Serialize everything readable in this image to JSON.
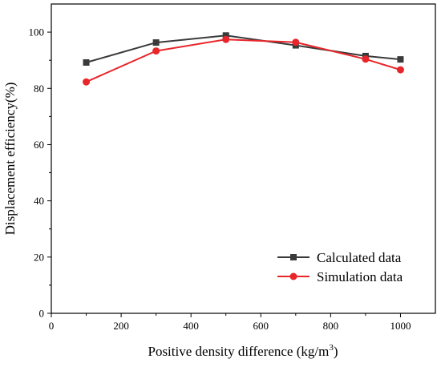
{
  "chart_data": {
    "type": "line",
    "xlabel": "Positive density difference (kg/m",
    "xlabel_sup": "3",
    "xlabel_end": ")",
    "ylabel": "Displacement efficiency(%)",
    "xlim": [
      0,
      1100
    ],
    "ylim": [
      0,
      110
    ],
    "xticks": [
      0,
      200,
      400,
      600,
      800,
      1000
    ],
    "yticks": [
      0,
      20,
      40,
      60,
      80,
      100
    ],
    "xtick_labels": [
      "0",
      "200",
      "400",
      "600",
      "800",
      "1000"
    ],
    "ytick_labels": [
      "0",
      "20",
      "40",
      "60",
      "80",
      "100"
    ],
    "legend_position": "bottom-right",
    "grid": false,
    "series": [
      {
        "name": "Calculated data",
        "color": "#3a3a3a",
        "marker": "square",
        "x": [
          100,
          300,
          500,
          700,
          900,
          1000
        ],
        "y": [
          89.2,
          96.3,
          98.8,
          95.3,
          91.5,
          90.3
        ]
      },
      {
        "name": "Simulation data",
        "color": "#e8262a",
        "marker": "circle",
        "x": [
          100,
          300,
          500,
          700,
          900,
          1000
        ],
        "y": [
          82.3,
          93.3,
          97.4,
          96.4,
          90.4,
          86.6
        ]
      }
    ]
  }
}
